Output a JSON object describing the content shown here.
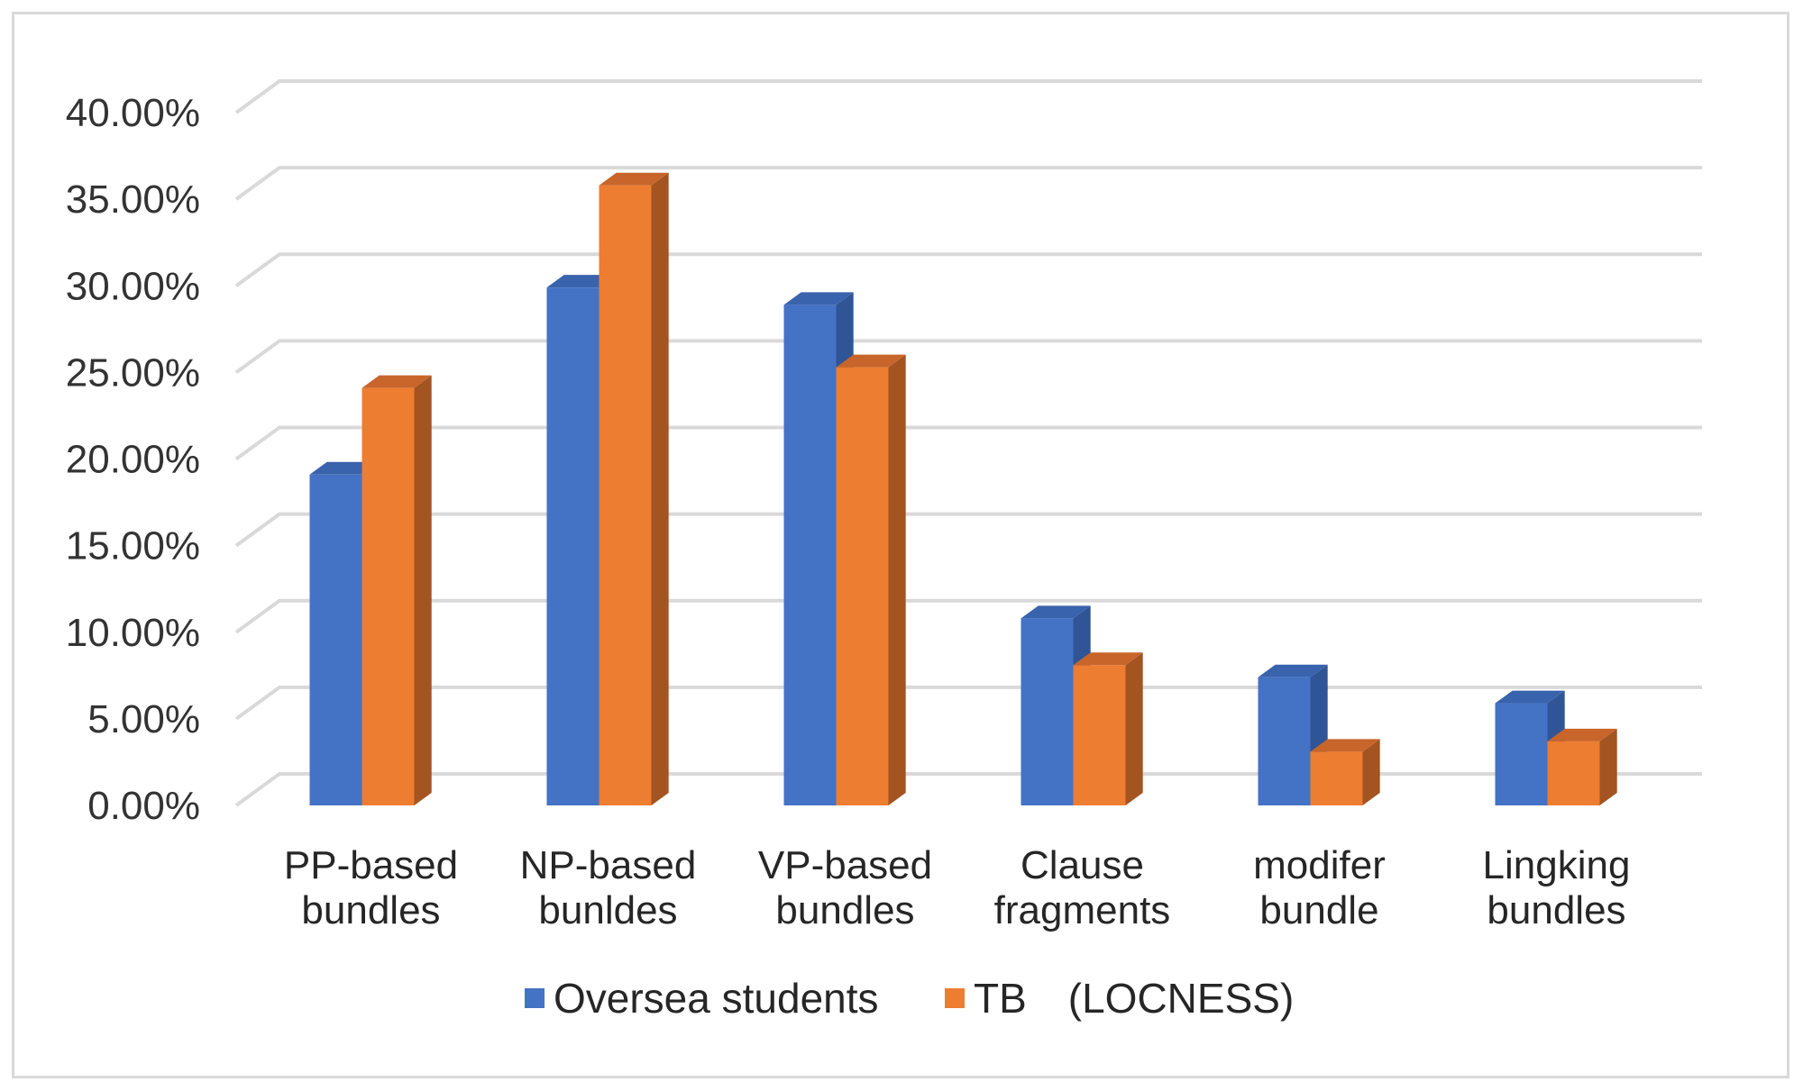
{
  "chart_data": {
    "type": "bar",
    "style": "3d-clustered-column",
    "title": "",
    "xlabel": "",
    "ylabel": "",
    "ylim": [
      0,
      40
    ],
    "y_tick_values": [
      0,
      5,
      10,
      15,
      20,
      25,
      30,
      35,
      40
    ],
    "y_tick_labels": [
      "0.00%",
      "5.00%",
      "10.00%",
      "15.00%",
      "20.00%",
      "25.00%",
      "30.00%",
      "35.00%",
      "40.00%"
    ],
    "grid": true,
    "legend_position": "bottom",
    "categories": [
      [
        "PP-based",
        "bundles"
      ],
      [
        "NP-based",
        "bunldes"
      ],
      [
        "VP-based",
        "bundles"
      ],
      [
        "Clause",
        "fragments"
      ],
      [
        "modifer",
        "bundle"
      ],
      [
        "Lingking",
        "bundles"
      ]
    ],
    "series": [
      {
        "name": "Oversea students",
        "color": "#4472c4",
        "side_color": "#2f5597",
        "top_color": "#3a63ad",
        "values": [
          19.1,
          29.9,
          28.9,
          10.8,
          7.4,
          5.9
        ]
      },
      {
        "name": "TB　(LOCNESS)",
        "color": "#ed7d31",
        "side_color": "#a35421",
        "top_color": "#c8652a",
        "values": [
          24.1,
          35.8,
          25.3,
          8.1,
          3.1,
          3.7
        ]
      }
    ]
  }
}
